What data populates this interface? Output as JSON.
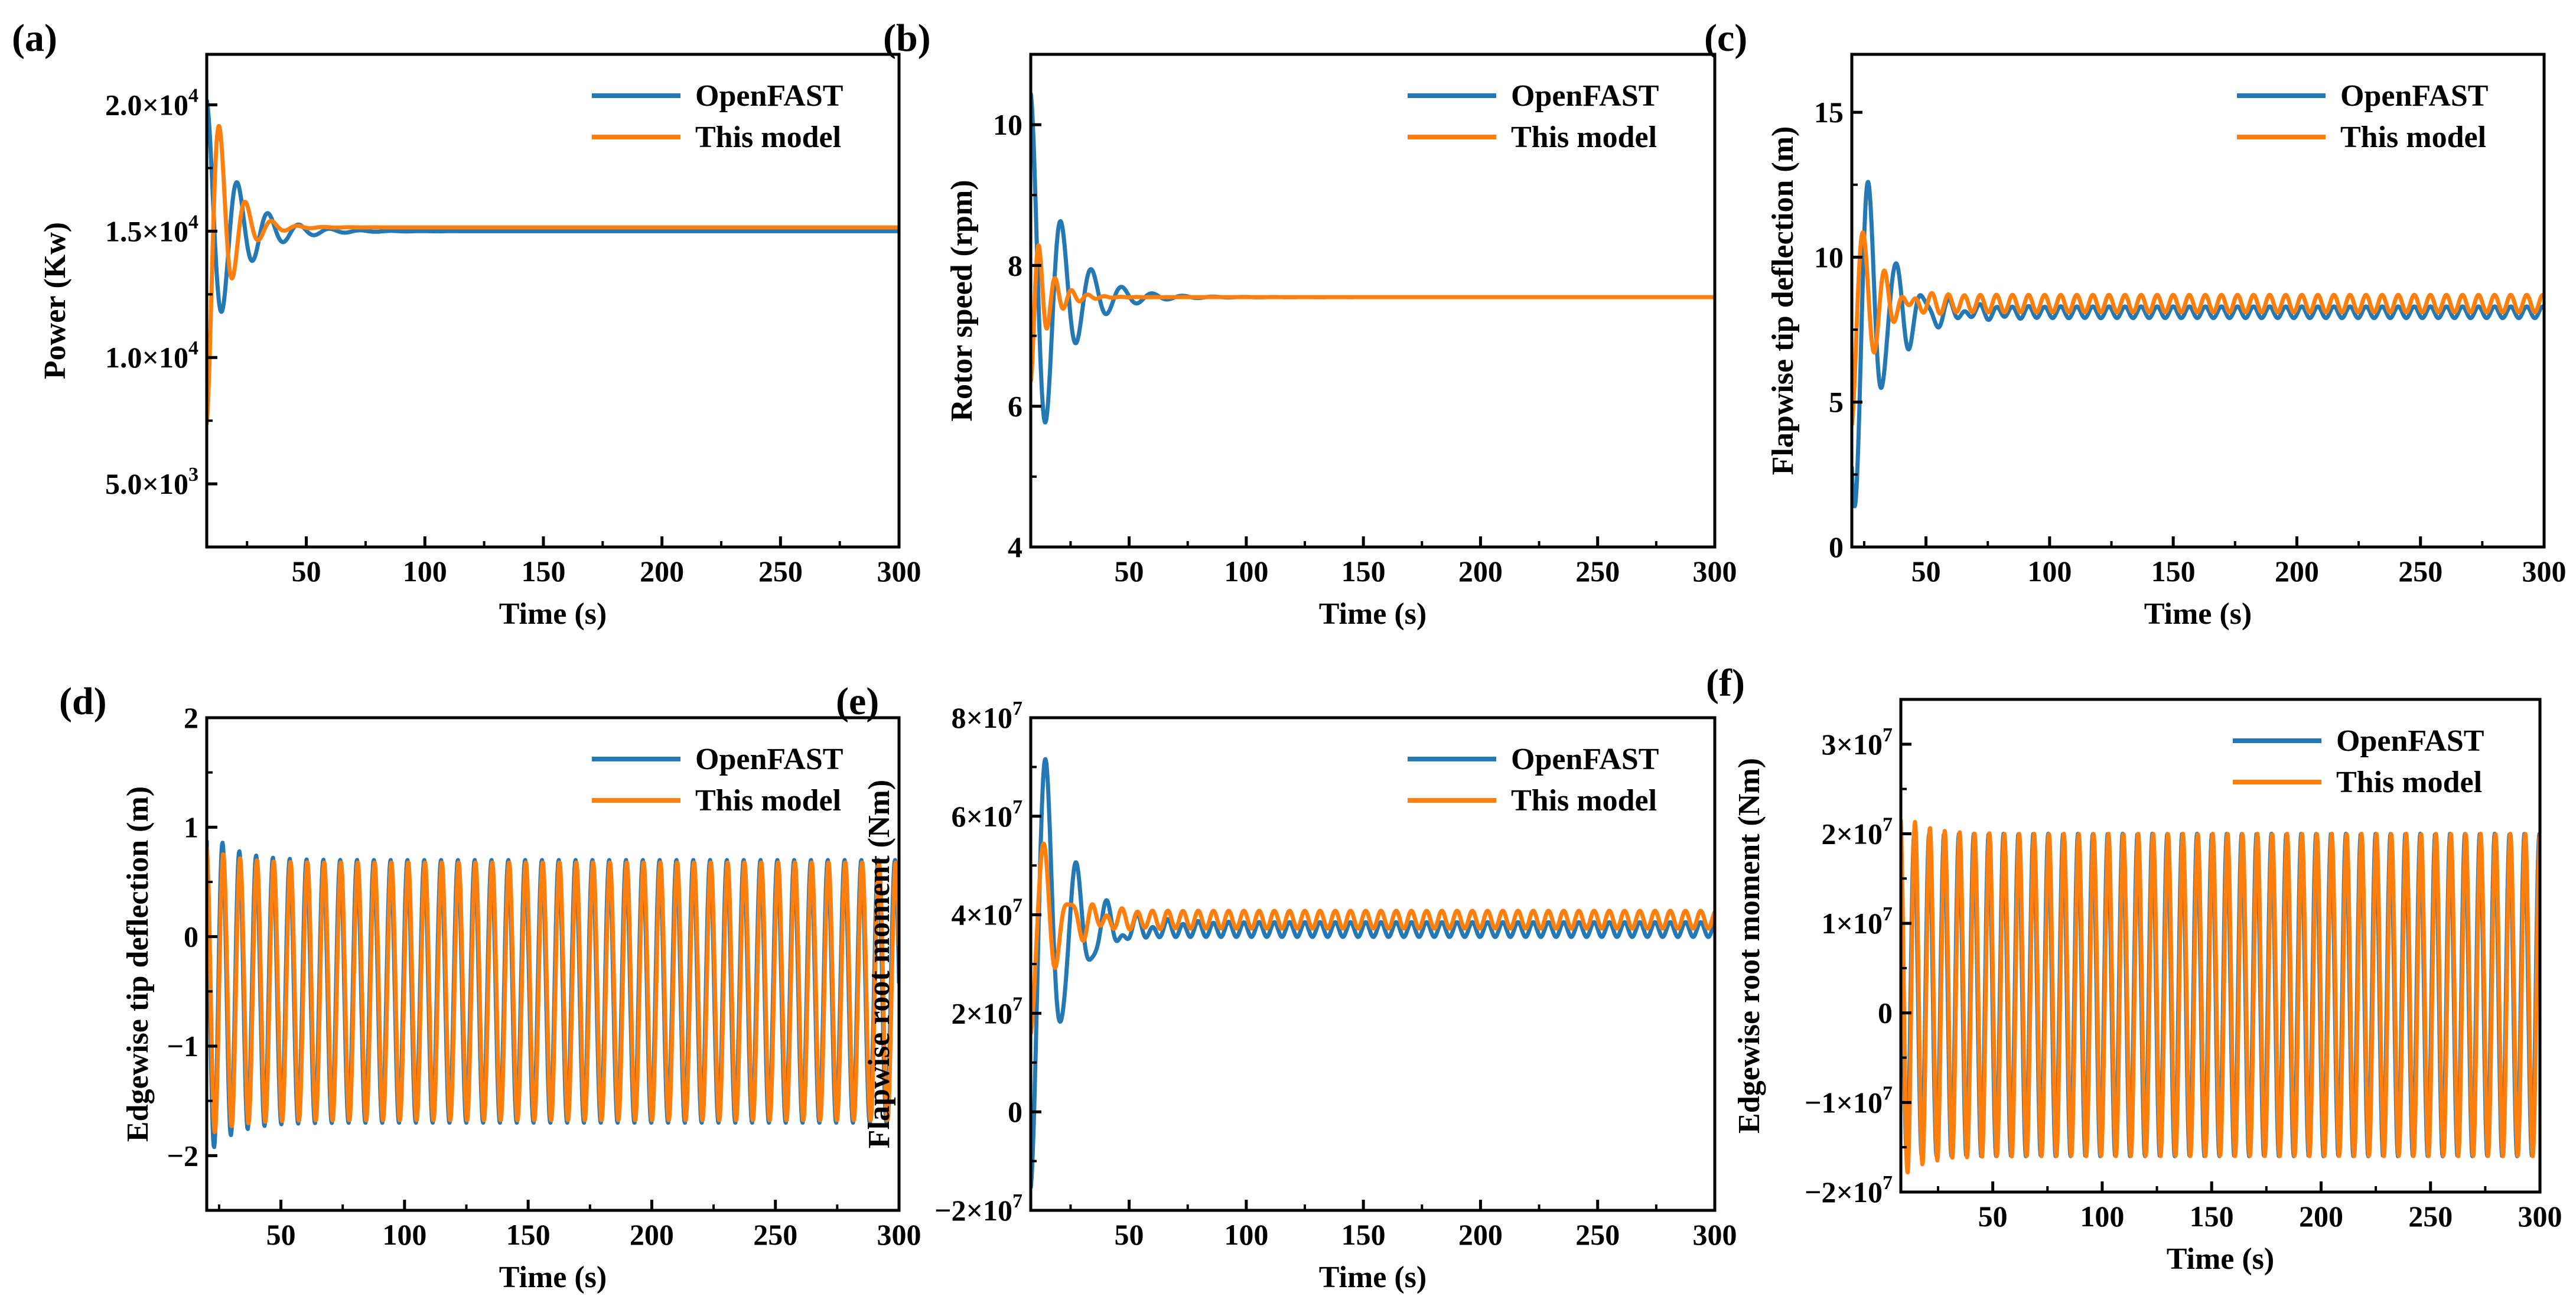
{
  "figure": {
    "series_names": [
      "OpenFAST",
      "This model"
    ],
    "colors": {
      "openfast": "#2478b4",
      "model": "#ff7f0e"
    }
  },
  "chart_data": [
    {
      "id": "a",
      "panel_label": "(a)",
      "type": "line",
      "xlabel": "Time (s)",
      "ylabel": "Power (Kw)",
      "xlim": [
        8,
        300
      ],
      "ylim": [
        2500,
        22000
      ],
      "xticks": [
        50,
        100,
        150,
        200,
        250,
        300
      ],
      "xtick_labels": [
        "50",
        "100",
        "150",
        "200",
        "250",
        "300"
      ],
      "yticks": [
        5000,
        10000,
        15000,
        20000
      ],
      "ytick_mant": [
        "5.0×10",
        "1.0×10",
        "1.5×10",
        "2.0×10"
      ],
      "ytick_exp": [
        "3",
        "4",
        "4",
        "4"
      ],
      "legend": [
        "OpenFAST",
        "This model"
      ],
      "series": [
        {
          "name": "OpenFAST",
          "color": "#2478b4",
          "t0": 8,
          "base": 15000,
          "decay": 13,
          "osc": [
            {
              "amp": 5200,
              "period": 13,
              "phase": 0
            }
          ]
        },
        {
          "name": "This model",
          "color": "#ff7f0e",
          "t0": 8,
          "base": 15150,
          "decay": 8,
          "osc": [
            {
              "amp": -7800,
              "period": 11,
              "phase": 0
            }
          ]
        }
      ]
    },
    {
      "id": "b",
      "panel_label": "(b)",
      "type": "line",
      "xlabel": "Time (s)",
      "ylabel": "Rotor speed (rpm)",
      "xlim": [
        8,
        300
      ],
      "ylim": [
        4,
        11
      ],
      "xticks": [
        50,
        100,
        150,
        200,
        250,
        300
      ],
      "xtick_labels": [
        "50",
        "100",
        "150",
        "200",
        "250",
        "300"
      ],
      "yticks": [
        4,
        6,
        8,
        10
      ],
      "ytick_labels": [
        "4",
        "6",
        "8",
        "10"
      ],
      "legend": [
        "OpenFAST",
        "This model"
      ],
      "series": [
        {
          "name": "OpenFAST",
          "color": "#2478b4",
          "t0": 8,
          "base": 7.55,
          "decay": 13,
          "osc": [
            {
              "amp": 2.9,
              "period": 13,
              "phase": 0
            }
          ]
        },
        {
          "name": "This model",
          "color": "#ff7f0e",
          "t0": 8,
          "base": 7.55,
          "decay": 7,
          "osc": [
            {
              "amp": -1.2,
              "period": 7,
              "phase": 0
            }
          ]
        }
      ]
    },
    {
      "id": "c",
      "panel_label": "(c)",
      "type": "line",
      "xlabel": "Time (s)",
      "ylabel": "Flapwise tip deflection (m)",
      "xlim": [
        20,
        300
      ],
      "ylim": [
        0,
        17
      ],
      "xticks": [
        50,
        100,
        150,
        200,
        250,
        300
      ],
      "xtick_labels": [
        "50",
        "100",
        "150",
        "200",
        "250",
        "300"
      ],
      "yticks": [
        0,
        5,
        10,
        15
      ],
      "ytick_labels": [
        "0",
        "5",
        "10",
        "15"
      ],
      "legend": [
        "OpenFAST",
        "This model"
      ],
      "series": [
        {
          "name": "OpenFAST",
          "color": "#2478b4",
          "t0": 20,
          "base": 8.1,
          "decay": 12,
          "osc": [
            {
              "amp": 7.5,
              "period": 11,
              "phase": 2.4
            },
            {
              "amp": 0.2,
              "period": 6.5,
              "phase": 0
            }
          ]
        },
        {
          "name": "This model",
          "color": "#ff7f0e",
          "t0": 20,
          "base": 8.4,
          "decay": 8,
          "osc": [
            {
              "amp": -4.5,
              "period": 9,
              "phase": 0
            },
            {
              "amp": 0.3,
              "period": 6.5,
              "phase": 0
            }
          ]
        }
      ]
    },
    {
      "id": "d",
      "panel_label": "(d)",
      "type": "line",
      "xlabel": "Time (s)",
      "ylabel": "Edgewise tip deflection (m)",
      "xlim": [
        20,
        300
      ],
      "ylim": [
        -2.5,
        2
      ],
      "xticks": [
        50,
        100,
        150,
        200,
        250,
        300
      ],
      "xtick_labels": [
        "50",
        "100",
        "150",
        "200",
        "250",
        "300"
      ],
      "yticks": [
        -2,
        -1,
        0,
        1,
        2
      ],
      "ytick_labels": [
        "−2",
        "−1",
        "0",
        "1",
        "2"
      ],
      "legend": [
        "OpenFAST",
        "This model"
      ],
      "series": [
        {
          "name": "OpenFAST",
          "color": "#2478b4",
          "t0": 20,
          "base": -0.5,
          "decay": 10,
          "osc": [
            {
              "amp": 1.2,
              "period": 6.8,
              "phase": 0.4
            },
            {
              "amp": 0.3,
              "period": 6.8,
              "phase": 0.4,
              "transient": true
            }
          ]
        },
        {
          "name": "This model",
          "color": "#ff7f0e",
          "t0": 20,
          "base": -0.5,
          "decay": 10,
          "osc": [
            {
              "amp": 1.18,
              "period": 6.8,
              "phase": 0.1
            },
            {
              "amp": 0.15,
              "period": 6.8,
              "phase": 0.1,
              "transient": true
            }
          ]
        }
      ]
    },
    {
      "id": "e",
      "panel_label": "(e)",
      "type": "line",
      "xlabel": "Time (s)",
      "ylabel": "Flapwise root moment (Nm)",
      "xlim": [
        8,
        300
      ],
      "ylim": [
        -20000000,
        80000000
      ],
      "xticks": [
        50,
        100,
        150,
        200,
        250,
        300
      ],
      "xtick_labels": [
        "50",
        "100",
        "150",
        "200",
        "250",
        "300"
      ],
      "yticks": [
        -20000000,
        0,
        20000000,
        40000000,
        60000000,
        80000000
      ],
      "ytick_mant": [
        "−2×10",
        "0",
        "2×10",
        "4×10",
        "6×10",
        "8×10"
      ],
      "ytick_exp": [
        "7",
        "",
        "7",
        "7",
        "7",
        "7"
      ],
      "legend": [
        "OpenFAST",
        "This model"
      ],
      "series": [
        {
          "name": "OpenFAST",
          "color": "#2478b4",
          "t0": 8,
          "base": 37000000,
          "decay": 13,
          "osc": [
            {
              "amp": -54000000,
              "period": 13,
              "phase": 0
            },
            {
              "amp": 1500000,
              "period": 6.5,
              "phase": 0
            }
          ]
        },
        {
          "name": "This model",
          "color": "#ff7f0e",
          "t0": 8,
          "base": 39000000,
          "decay": 10,
          "osc": [
            {
              "amp": -25000000,
              "period": 11,
              "phase": 0
            },
            {
              "amp": 1800000,
              "period": 6.5,
              "phase": 0
            }
          ]
        }
      ]
    },
    {
      "id": "f",
      "panel_label": "(f)",
      "type": "line",
      "xlabel": "Time (s)",
      "ylabel": "Edgewise root moment (Nm)",
      "xlim": [
        8,
        300
      ],
      "ylim": [
        -20000000,
        35000000
      ],
      "xticks": [
        50,
        100,
        150,
        200,
        250,
        300
      ],
      "xtick_labels": [
        "50",
        "100",
        "150",
        "200",
        "250",
        "300"
      ],
      "yticks": [
        -20000000,
        -10000000,
        0,
        10000000,
        20000000,
        30000000
      ],
      "ytick_mant": [
        "−2×10",
        "−1×10",
        "0",
        "1×10",
        "2×10",
        "3×10"
      ],
      "ytick_exp": [
        "7",
        "7",
        "",
        "7",
        "7",
        "7"
      ],
      "legend": [
        "OpenFAST",
        "This model"
      ],
      "series": [
        {
          "name": "OpenFAST",
          "color": "#2478b4",
          "t0": 8,
          "base": 2000000,
          "decay": 10,
          "osc": [
            {
              "amp": 18000000,
              "period": 6.8,
              "phase": 0.6
            }
          ]
        },
        {
          "name": "This model",
          "color": "#ff7f0e",
          "t0": 8,
          "base": 2000000,
          "decay": 10,
          "osc": [
            {
              "amp": 18000000,
              "period": 6.8,
              "phase": 0.3
            },
            {
              "amp": 2500000,
              "period": 6.8,
              "phase": 0.3,
              "transient": true
            }
          ]
        }
      ]
    }
  ]
}
